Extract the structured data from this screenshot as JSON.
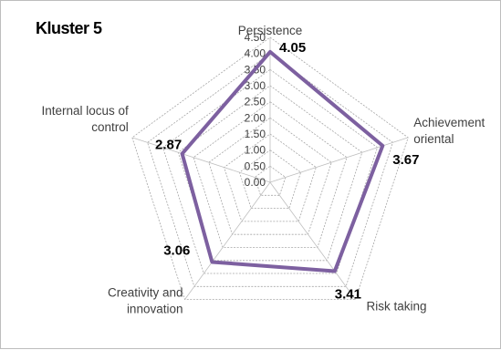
{
  "chart_data": {
    "type": "radar",
    "title": "Kluster 5",
    "categories": [
      "Persistence",
      "Achievement oriental",
      "Risk taking",
      "Creativity and innovation",
      "Internal locus of control"
    ],
    "category_label_lines": [
      [
        "Persistence"
      ],
      [
        "Achievement",
        "oriental"
      ],
      [
        "Risk taking"
      ],
      [
        "Creativity and",
        "innovation"
      ],
      [
        "Internal locus of",
        "control"
      ]
    ],
    "series": [
      {
        "values": [
          4.05,
          3.67,
          3.41,
          3.06,
          2.87
        ],
        "color": "#7d60a0"
      }
    ],
    "data_labels": [
      "4.05",
      "3.67",
      "3.41",
      "3.06",
      "2.87"
    ],
    "rlim": [
      0,
      4.5
    ],
    "rticks": [
      "0.00",
      "0.50",
      "1.00",
      "1.50",
      "2.00",
      "2.50",
      "3.00",
      "3.50",
      "4.00",
      "4.50"
    ],
    "grid": true,
    "legend": "none",
    "colors": {
      "grid": "#a6a6a6",
      "axis": "#bfbfbf",
      "text": "#404040",
      "data_label": "#000000"
    }
  }
}
